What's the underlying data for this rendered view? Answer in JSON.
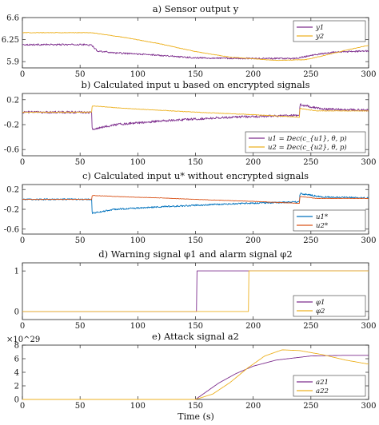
{
  "figure": {
    "xlabel": "Time (s)"
  },
  "colors": {
    "purple": "#7E2F8E",
    "yellow": "#EDB120",
    "blue": "#0072BD",
    "orange": "#D95319"
  },
  "chart_data": [
    {
      "type": "line",
      "title": "a) Sensor output y",
      "xlim": [
        0,
        300
      ],
      "ylim": [
        5.8,
        6.6
      ],
      "xticks": [
        0,
        50,
        100,
        150,
        200,
        250,
        300
      ],
      "yticks": [
        5.9,
        6.25,
        6.6
      ],
      "ytick_labels": [
        "5.9",
        "6.25",
        "6.6"
      ],
      "legend_position": "top-right",
      "series": [
        {
          "name": "y1",
          "color": "#7E2F8E",
          "noise": 0.012,
          "points": [
            [
              0,
              6.17
            ],
            [
              55,
              6.17
            ],
            [
              60,
              6.16
            ],
            [
              65,
              6.07
            ],
            [
              80,
              6.04
            ],
            [
              120,
              6.0
            ],
            [
              150,
              5.96
            ],
            [
              200,
              5.95
            ],
            [
              235,
              5.95
            ],
            [
              240,
              5.96
            ],
            [
              250,
              6.0
            ],
            [
              270,
              6.05
            ],
            [
              300,
              6.07
            ]
          ]
        },
        {
          "name": "y2",
          "color": "#EDB120",
          "noise": 0.004,
          "points": [
            [
              0,
              6.36
            ],
            [
              60,
              6.36
            ],
            [
              90,
              6.28
            ],
            [
              120,
              6.18
            ],
            [
              150,
              6.06
            ],
            [
              180,
              5.97
            ],
            [
              220,
              5.92
            ],
            [
              245,
              5.93
            ],
            [
              260,
              5.99
            ],
            [
              280,
              6.08
            ],
            [
              300,
              6.16
            ]
          ]
        }
      ]
    },
    {
      "type": "line",
      "title": "b) Calculated input u based on encrypted signals",
      "xlim": [
        0,
        300
      ],
      "ylim": [
        -0.7,
        0.3
      ],
      "xticks": [
        0,
        50,
        100,
        150,
        200,
        250,
        300
      ],
      "yticks": [
        0.2,
        -0.2,
        -0.6
      ],
      "ytick_labels": [
        "0.2",
        "-0.2",
        "-0.6"
      ],
      "legend_position": "bottom-right",
      "series": [
        {
          "name": "u1 = Dec(c_{u1}, θ, p)",
          "color": "#7E2F8E",
          "noise": 0.018,
          "points": [
            [
              0,
              0
            ],
            [
              60,
              0
            ],
            [
              60.5,
              -0.28
            ],
            [
              80,
              -0.2
            ],
            [
              120,
              -0.14
            ],
            [
              180,
              -0.08
            ],
            [
              240,
              -0.05
            ],
            [
              240.5,
              0.12
            ],
            [
              260,
              0.05
            ],
            [
              300,
              0.03
            ]
          ]
        },
        {
          "name": "u2 = Dec(c_{u2}, θ, p)",
          "color": "#EDB120",
          "noise": 0.004,
          "points": [
            [
              0,
              0
            ],
            [
              60,
              0
            ],
            [
              60.5,
              0.1
            ],
            [
              90,
              0.06
            ],
            [
              120,
              0.03
            ],
            [
              150,
              0.0
            ],
            [
              200,
              -0.04
            ],
            [
              240,
              -0.08
            ],
            [
              240.5,
              0.06
            ],
            [
              255,
              0.02
            ],
            [
              300,
              0.02
            ]
          ]
        }
      ]
    },
    {
      "type": "line",
      "title": "c) Calculated input u* without encrypted signals",
      "xlim": [
        0,
        300
      ],
      "ylim": [
        -0.7,
        0.3
      ],
      "xticks": [
        0,
        50,
        100,
        150,
        200,
        250,
        300
      ],
      "yticks": [
        0.2,
        -0.2,
        -0.6
      ],
      "ytick_labels": [
        "0.2",
        "-0.2",
        "-0.6"
      ],
      "legend_position": "bottom-right",
      "series": [
        {
          "name": "u1*",
          "color": "#0072BD",
          "noise": 0.015,
          "points": [
            [
              0,
              0
            ],
            [
              60,
              0
            ],
            [
              60.5,
              -0.28
            ],
            [
              80,
              -0.2
            ],
            [
              120,
              -0.15
            ],
            [
              180,
              -0.09
            ],
            [
              240,
              -0.05
            ],
            [
              240.5,
              0.12
            ],
            [
              260,
              0.05
            ],
            [
              300,
              0.03
            ]
          ]
        },
        {
          "name": "u2*",
          "color": "#D95319",
          "noise": 0.004,
          "points": [
            [
              0,
              0
            ],
            [
              60,
              0
            ],
            [
              60.5,
              0.08
            ],
            [
              90,
              0.05
            ],
            [
              120,
              0.03
            ],
            [
              150,
              0.0
            ],
            [
              200,
              -0.04
            ],
            [
              240,
              -0.08
            ],
            [
              240.5,
              0.06
            ],
            [
              255,
              0.02
            ],
            [
              300,
              0.02
            ]
          ]
        }
      ]
    },
    {
      "type": "line",
      "title": "d) Warning signal φ1 and alarm signal φ2",
      "xlim": [
        0,
        300
      ],
      "ylim": [
        -0.2,
        1.2
      ],
      "xticks": [
        0,
        50,
        100,
        150,
        200,
        250,
        300
      ],
      "yticks": [
        0,
        1
      ],
      "ytick_labels": [
        "0",
        "1"
      ],
      "legend_position": "bottom-right",
      "series": [
        {
          "name": "φ1",
          "color": "#7E2F8E",
          "noise": 0,
          "points": [
            [
              0,
              0
            ],
            [
              151,
              0
            ],
            [
              151,
              1
            ],
            [
              300,
              1
            ]
          ]
        },
        {
          "name": "φ2",
          "color": "#EDB120",
          "noise": 0,
          "points": [
            [
              0,
              0
            ],
            [
              196,
              0
            ],
            [
              196,
              1
            ],
            [
              300,
              1
            ]
          ]
        }
      ]
    },
    {
      "type": "line",
      "title": "e) Attack signal a2",
      "xlim": [
        0,
        300
      ],
      "ylim": [
        0,
        8
      ],
      "xticks": [
        0,
        50,
        100,
        150,
        200,
        250,
        300
      ],
      "yticks": [
        0,
        2,
        4,
        6,
        8
      ],
      "ytick_labels": [
        "0",
        "2",
        "4",
        "6",
        "8"
      ],
      "y_exponent": "×10^29",
      "legend_position": "bottom-right",
      "series": [
        {
          "name": "a21",
          "color": "#7E2F8E",
          "noise": 0,
          "points": [
            [
              0,
              0
            ],
            [
              150,
              0
            ],
            [
              160,
              1.2
            ],
            [
              170,
              2.4
            ],
            [
              185,
              3.8
            ],
            [
              200,
              4.9
            ],
            [
              220,
              5.8
            ],
            [
              250,
              6.4
            ],
            [
              280,
              6.5
            ],
            [
              300,
              6.5
            ]
          ]
        },
        {
          "name": "a22",
          "color": "#EDB120",
          "noise": 0,
          "points": [
            [
              0,
              0
            ],
            [
              150,
              0
            ],
            [
              165,
              0.8
            ],
            [
              180,
              2.5
            ],
            [
              195,
              4.6
            ],
            [
              210,
              6.4
            ],
            [
              225,
              7.3
            ],
            [
              240,
              7.2
            ],
            [
              260,
              6.6
            ],
            [
              280,
              5.8
            ],
            [
              300,
              5.2
            ]
          ]
        }
      ]
    }
  ]
}
